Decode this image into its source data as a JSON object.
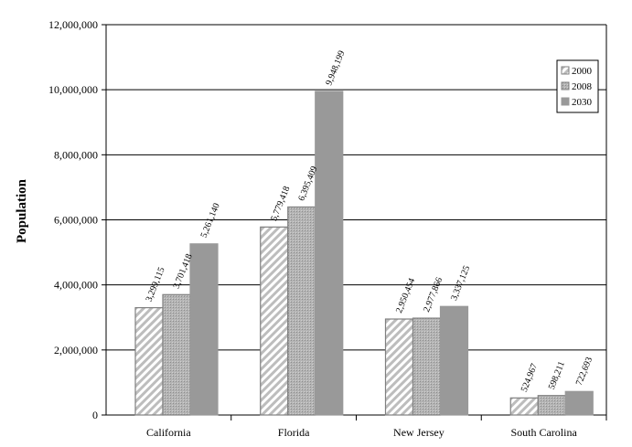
{
  "chart_data": {
    "type": "bar",
    "title": "",
    "xlabel": "",
    "ylabel": "Population",
    "ylim": [
      0,
      12000000
    ],
    "yticks": [
      0,
      2000000,
      4000000,
      6000000,
      8000000,
      10000000,
      12000000
    ],
    "ytick_labels": [
      "0",
      "2,000,000",
      "4,000,000",
      "6,000,000",
      "8,000,000",
      "10,000,000",
      "12,000,000"
    ],
    "grid": "horizontal",
    "legend_position": "top-right",
    "categories": [
      "California",
      "Florida",
      "New Jersey",
      "South Carolina"
    ],
    "series": [
      {
        "name": "2000",
        "pattern": "diagonal-hatch",
        "color": "#c8c8c8",
        "values": [
          3299115,
          5779418,
          2950454,
          524967
        ],
        "labels": [
          "3,299,115",
          "5,779,418",
          "2,950,454",
          "524,967"
        ]
      },
      {
        "name": "2008",
        "pattern": "dotted",
        "color": "#a8a8a8",
        "values": [
          3701418,
          6395409,
          2977866,
          598211
        ],
        "labels": [
          "3,701,418",
          "6,395,409",
          "2,977,866",
          "598,211"
        ]
      },
      {
        "name": "2030",
        "pattern": "solid",
        "color": "#999999",
        "values": [
          5261140,
          9948199,
          3337125,
          722693
        ],
        "labels": [
          "5,261,140",
          "9,948,199",
          "3,337,125",
          "722,693"
        ]
      }
    ]
  }
}
